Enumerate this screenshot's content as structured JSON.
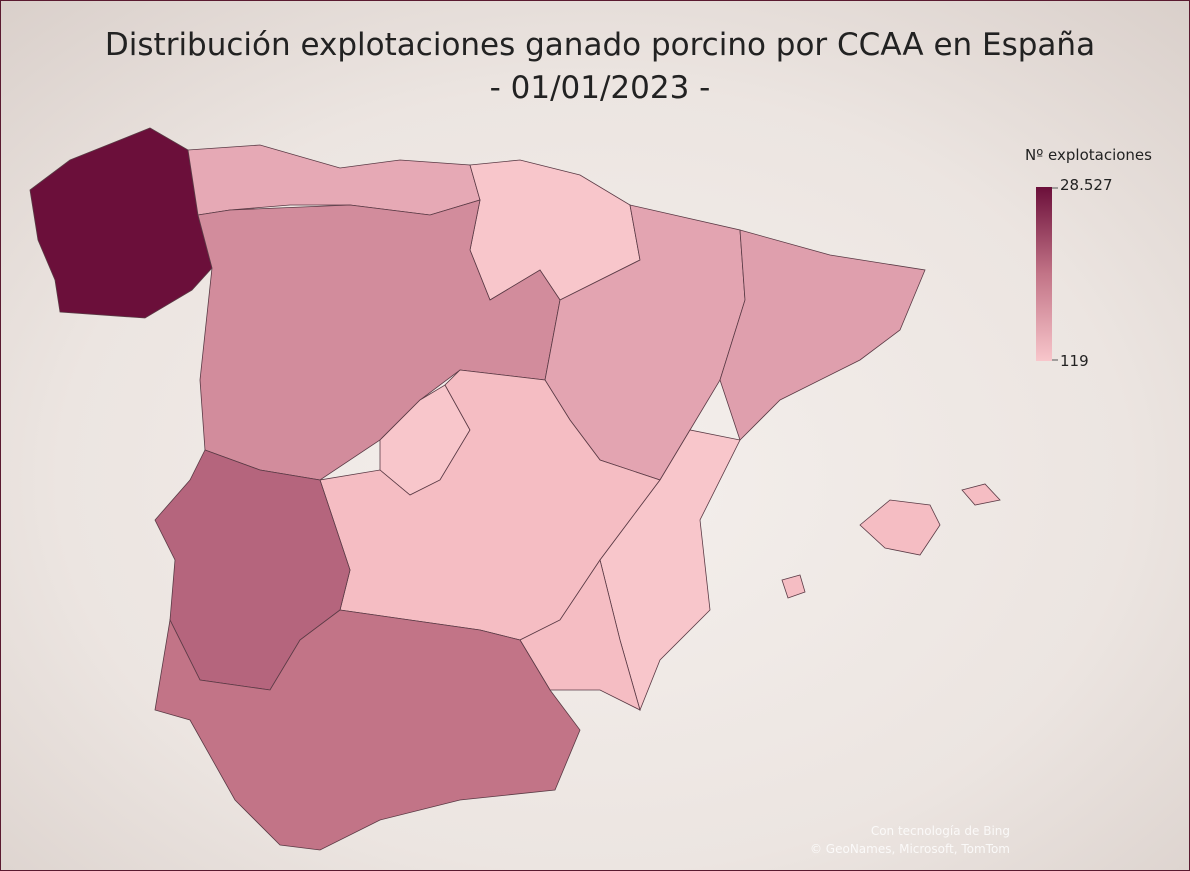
{
  "title_line1": "Distribución explotaciones ganado porcino por CCAA en España",
  "title_line2": "- 01/01/2023 -",
  "legend": {
    "title": "Nº explotaciones",
    "max": {
      "value": 28527,
      "label": "28.527"
    },
    "min": 119
  },
  "attribution": [
    "Con tecnología de Bing",
    "© GeoNames, Microsoft, TomTom"
  ]
}
